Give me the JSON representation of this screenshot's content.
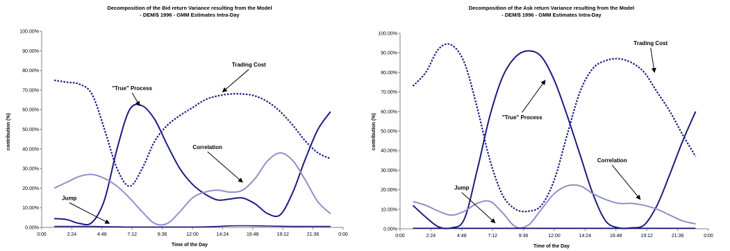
{
  "colors": {
    "true_process": "#1a1a80",
    "trading_cost": "#1a1a80",
    "correlation": "#8f8fc7",
    "jump": "#1a1a80",
    "axis": "#808080",
    "arrow": "#000000"
  },
  "chart_data": [
    {
      "type": "line",
      "title": "Decomposition of the Bid return Variance resulting from the Model",
      "subtitle": "- DEM/$ 1996 - GMM Estimates Intra-Day",
      "xlabel": "Time of the Day",
      "ylabel": "contribution (%)",
      "xlim": [
        0,
        24
      ],
      "ylim": [
        0,
        100
      ],
      "x_tick_labels": [
        "0:00",
        "2:24",
        "4:48",
        "7:12",
        "9:36",
        "12:00",
        "14:24",
        "16:48",
        "19:12",
        "21:36",
        "0:00"
      ],
      "y_tick_labels": [
        "0.00%",
        "10.00%",
        "20.00%",
        "30.00%",
        "40.00%",
        "50.00%",
        "60.00%",
        "70.00%",
        "80.00%",
        "90.00%",
        "100.00%"
      ],
      "grid": false,
      "x": [
        1.0,
        2.0,
        3.0,
        4.0,
        5.0,
        6.0,
        7.0,
        8.0,
        9.0,
        10.0,
        11.0,
        12.0,
        13.0,
        14.0,
        15.0,
        16.0,
        17.0,
        18.0,
        19.0,
        20.0,
        21.0,
        22.0,
        23.0
      ],
      "series": [
        {
          "name": "\"True\" Process",
          "style": "solid",
          "values": [
            4.5,
            4.0,
            2.0,
            2.5,
            14,
            40,
            60,
            62,
            55,
            42,
            30,
            22,
            17,
            14,
            14.5,
            15,
            12,
            7,
            6.5,
            18,
            35,
            50,
            59
          ]
        },
        {
          "name": "Trading Cost",
          "style": "dotted",
          "values": [
            75,
            74,
            73,
            68,
            50,
            30,
            21,
            30,
            44,
            52,
            57,
            61,
            65,
            67,
            68,
            68,
            67,
            64,
            59,
            52,
            44,
            38,
            35
          ]
        },
        {
          "name": "Correlation",
          "style": "solid-light",
          "values": [
            20,
            23,
            26,
            27,
            25,
            21,
            15,
            8,
            2,
            2,
            8,
            15,
            18,
            19,
            18,
            19,
            25,
            34,
            38,
            34,
            24,
            13,
            7
          ]
        },
        {
          "name": "Jump",
          "style": "solid-thin",
          "values": [
            0.5,
            0.5,
            0.5,
            0.5,
            0.4,
            0.3,
            0.2,
            0.2,
            0.2,
            0.2,
            0.2,
            0.2,
            0.3,
            0.5,
            0.8,
            0.9,
            0.8,
            0.7,
            0.6,
            0.5,
            0.5,
            0.5,
            0.5
          ]
        }
      ],
      "annotations": [
        {
          "text": "\"True\" Process",
          "at": [
            7.2,
            70
          ],
          "arrow_to": [
            7.8,
            62
          ]
        },
        {
          "text": "Trading Cost",
          "at": [
            16.5,
            82
          ],
          "arrow_to": [
            14.4,
            69
          ]
        },
        {
          "text": "Correlation",
          "at": [
            13.2,
            40
          ],
          "arrow_to": [
            16.0,
            23
          ]
        },
        {
          "text": "Jump",
          "at": [
            2.2,
            14
          ],
          "arrow_to": [
            5.4,
            2
          ]
        }
      ]
    },
    {
      "type": "line",
      "title": "Decomposition of the Ask return Variance resulting from the Model",
      "subtitle": "- DEM/$ 1996 - GMM Estimates Intra-Day",
      "xlabel": "Time of the Day",
      "ylabel": "contribution (%)",
      "xlim": [
        0,
        24
      ],
      "ylim": [
        0,
        100
      ],
      "x_tick_labels": [
        "0:00",
        "2:24",
        "4:48",
        "7:12",
        "9:36",
        "12:00",
        "14:24",
        "16:48",
        "19:12",
        "21:36",
        "0:00"
      ],
      "y_tick_labels": [
        "0.00%",
        "10.00%",
        "20.00%",
        "30.00%",
        "40.00%",
        "50.00%",
        "60.00%",
        "70.00%",
        "80.00%",
        "90.00%",
        "100.00%"
      ],
      "grid": false,
      "x": [
        1.0,
        2.0,
        3.0,
        4.0,
        5.0,
        6.0,
        7.0,
        8.0,
        9.0,
        10.0,
        11.0,
        12.0,
        13.0,
        14.0,
        15.0,
        16.0,
        17.0,
        18.0,
        19.0,
        20.0,
        21.0,
        22.0,
        23.0
      ],
      "series": [
        {
          "name": "\"True\" Process",
          "style": "solid",
          "values": [
            12,
            6,
            1,
            0.5,
            5,
            30,
            58,
            78,
            88,
            91,
            88,
            76,
            58,
            38,
            18,
            4,
            0.5,
            0.5,
            2,
            12,
            28,
            45,
            60
          ]
        },
        {
          "name": "Trading Cost",
          "style": "dotted",
          "values": [
            73,
            80,
            92,
            94,
            85,
            62,
            35,
            17,
            10,
            9,
            12,
            25,
            48,
            70,
            82,
            86,
            87,
            85,
            80,
            70,
            60,
            48,
            37
          ]
        },
        {
          "name": "Correlation",
          "style": "solid-light",
          "values": [
            14,
            12,
            9,
            7,
            9,
            13,
            14,
            8,
            1,
            2,
            10,
            18,
            22,
            22,
            18,
            15,
            13,
            13,
            12,
            10,
            7,
            4,
            2.5
          ]
        },
        {
          "name": "Jump",
          "style": "solid-thin",
          "values": [
            0.3,
            0.3,
            0.3,
            0.3,
            0.3,
            0.3,
            0.3,
            0.3,
            0.3,
            0.3,
            0.3,
            0.3,
            0.3,
            0.3,
            0.3,
            0.3,
            0.3,
            0.3,
            0.3,
            0.3,
            0.3,
            0.3,
            0.3
          ]
        }
      ],
      "annotations": [
        {
          "text": "\"True\" Process",
          "at": [
            9.5,
            56
          ],
          "arrow_to": [
            11.3,
            76
          ]
        },
        {
          "text": "Trading Cost",
          "at": [
            19.5,
            94
          ],
          "arrow_to": [
            19.8,
            80
          ]
        },
        {
          "text": "Correlation",
          "at": [
            16.5,
            34
          ],
          "arrow_to": [
            18.7,
            15
          ]
        },
        {
          "text": "Jump",
          "at": [
            4.8,
            20
          ],
          "arrow_to": [
            7.4,
            3
          ]
        }
      ]
    }
  ]
}
